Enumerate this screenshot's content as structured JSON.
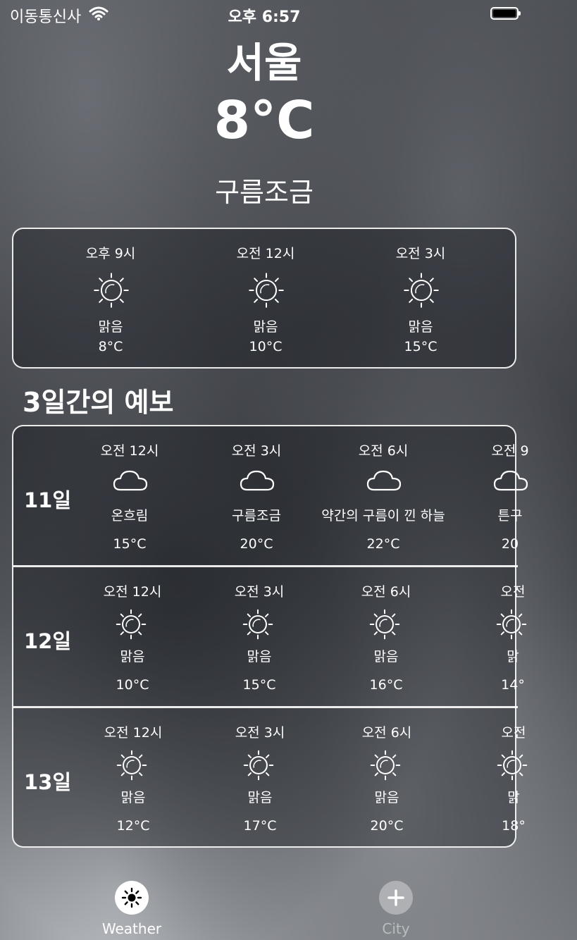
{
  "status_bar": {
    "carrier": "이동통신사",
    "time": "오후 6:57"
  },
  "current": {
    "city": "서울",
    "temperature": "8°C",
    "condition": "구름조금"
  },
  "hourly": [
    {
      "time": "오후 9시",
      "icon": "sun-icon",
      "condition": "맑음",
      "temp": "8°C"
    },
    {
      "time": "오전 12시",
      "icon": "sun-icon",
      "condition": "맑음",
      "temp": "10°C"
    },
    {
      "time": "오전 3시",
      "icon": "sun-icon",
      "condition": "맑음",
      "temp": "15°C"
    }
  ],
  "forecast_title": "3일간의 예보",
  "forecast": [
    {
      "day": "11일",
      "slots": [
        {
          "time": "오전 12시",
          "icon": "cloud-icon",
          "condition": "온흐림",
          "temp": "15°C"
        },
        {
          "time": "오전 3시",
          "icon": "cloud-icon",
          "condition": "구름조금",
          "temp": "20°C"
        },
        {
          "time": "오전 6시",
          "icon": "cloud-icon",
          "condition": "약간의 구름이 낀 하늘",
          "temp": "22°C"
        },
        {
          "time": "오전 9",
          "icon": "cloud-icon",
          "condition": "튼구",
          "temp": "20"
        }
      ]
    },
    {
      "day": "12일",
      "slots": [
        {
          "time": "오전 12시",
          "icon": "sun-icon",
          "condition": "맑음",
          "temp": "10°C"
        },
        {
          "time": "오전 3시",
          "icon": "sun-icon",
          "condition": "맑음",
          "temp": "15°C"
        },
        {
          "time": "오전 6시",
          "icon": "sun-icon",
          "condition": "맑음",
          "temp": "16°C"
        },
        {
          "time": "오전",
          "icon": "sun-icon",
          "condition": "맑",
          "temp": "14°"
        }
      ]
    },
    {
      "day": "13일",
      "slots": [
        {
          "time": "오전 12시",
          "icon": "sun-icon",
          "condition": "맑음",
          "temp": "12°C"
        },
        {
          "time": "오전 3시",
          "icon": "sun-icon",
          "condition": "맑음",
          "temp": "17°C"
        },
        {
          "time": "오전 6시",
          "icon": "sun-icon",
          "condition": "맑음",
          "temp": "20°C"
        },
        {
          "time": "오전",
          "icon": "sun-icon",
          "condition": "맑",
          "temp": "18°"
        }
      ]
    }
  ],
  "tabs": [
    {
      "label": "Weather",
      "icon": "sun-icon",
      "active": true
    },
    {
      "label": "City",
      "icon": "plus-icon",
      "active": false
    }
  ]
}
